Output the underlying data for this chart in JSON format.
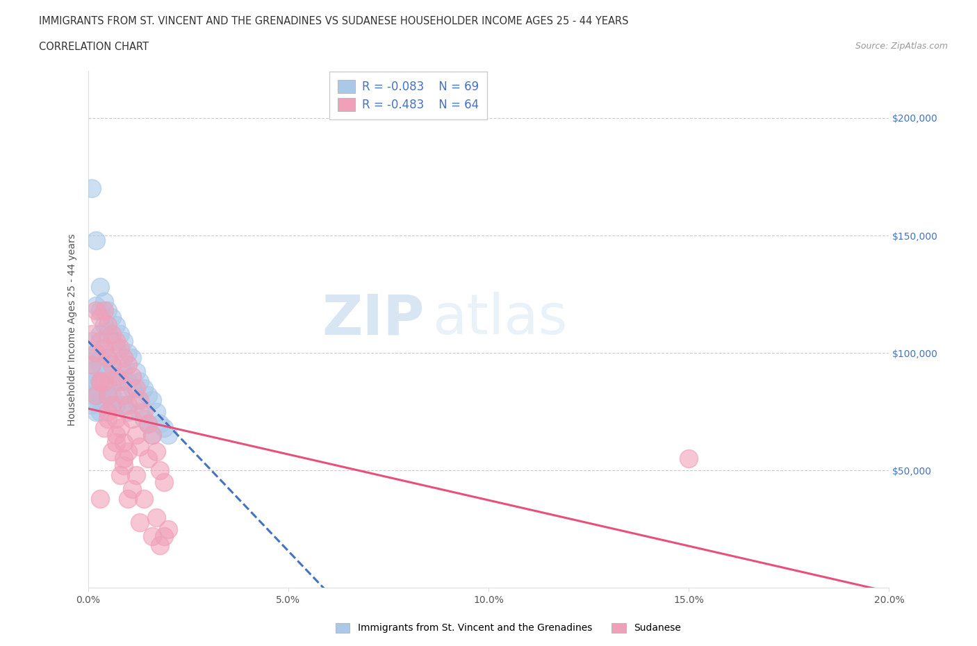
{
  "title_line1": "IMMIGRANTS FROM ST. VINCENT AND THE GRENADINES VS SUDANESE HOUSEHOLDER INCOME AGES 25 - 44 YEARS",
  "title_line2": "CORRELATION CHART",
  "source_text": "Source: ZipAtlas.com",
  "ylabel": "Householder Income Ages 25 - 44 years",
  "xlim": [
    0.0,
    0.2
  ],
  "ylim": [
    0,
    220000
  ],
  "xticks": [
    0.0,
    0.05,
    0.1,
    0.15,
    0.2
  ],
  "xtick_labels": [
    "0.0%",
    "5.0%",
    "10.0%",
    "15.0%",
    "20.0%"
  ],
  "ytick_values": [
    50000,
    100000,
    150000,
    200000
  ],
  "ytick_labels": [
    "$50,000",
    "$100,000",
    "$150,000",
    "$200,000"
  ],
  "legend_r1": "-0.083",
  "legend_n1": "69",
  "legend_r2": "-0.483",
  "legend_n2": "64",
  "color_blue": "#aac8e8",
  "color_pink": "#f0a0b8",
  "color_blue_line": "#4472c4",
  "color_pink_line": "#e8507a",
  "watermark_color": "#d0e4f4",
  "blue_scatter_x": [
    0.001,
    0.001,
    0.001,
    0.001,
    0.001,
    0.002,
    0.002,
    0.002,
    0.002,
    0.002,
    0.002,
    0.003,
    0.003,
    0.003,
    0.003,
    0.003,
    0.003,
    0.004,
    0.004,
    0.004,
    0.004,
    0.004,
    0.005,
    0.005,
    0.005,
    0.005,
    0.005,
    0.006,
    0.006,
    0.006,
    0.006,
    0.007,
    0.007,
    0.007,
    0.007,
    0.008,
    0.008,
    0.008,
    0.009,
    0.009,
    0.009,
    0.01,
    0.01,
    0.01,
    0.011,
    0.011,
    0.012,
    0.012,
    0.013,
    0.013,
    0.014,
    0.014,
    0.015,
    0.015,
    0.016,
    0.016,
    0.017,
    0.018,
    0.019,
    0.02,
    0.001,
    0.001,
    0.002,
    0.002,
    0.003,
    0.003,
    0.004,
    0.005,
    0.006
  ],
  "blue_scatter_y": [
    170000,
    95000,
    88000,
    82000,
    78000,
    148000,
    120000,
    100000,
    88000,
    82000,
    75000,
    128000,
    118000,
    108000,
    98000,
    88000,
    75000,
    122000,
    112000,
    102000,
    92000,
    82000,
    118000,
    108000,
    98000,
    88000,
    78000,
    115000,
    105000,
    95000,
    82000,
    112000,
    102000,
    88000,
    78000,
    108000,
    95000,
    82000,
    105000,
    92000,
    78000,
    100000,
    88000,
    75000,
    98000,
    85000,
    92000,
    80000,
    88000,
    75000,
    85000,
    72000,
    82000,
    70000,
    80000,
    65000,
    75000,
    70000,
    68000,
    65000,
    105000,
    92000,
    98000,
    85000,
    95000,
    80000,
    90000,
    85000,
    78000
  ],
  "pink_scatter_x": [
    0.001,
    0.001,
    0.002,
    0.002,
    0.003,
    0.003,
    0.003,
    0.004,
    0.004,
    0.004,
    0.005,
    0.005,
    0.005,
    0.006,
    0.006,
    0.006,
    0.007,
    0.007,
    0.007,
    0.008,
    0.008,
    0.008,
    0.009,
    0.009,
    0.009,
    0.01,
    0.01,
    0.01,
    0.011,
    0.011,
    0.012,
    0.012,
    0.013,
    0.013,
    0.014,
    0.015,
    0.015,
    0.016,
    0.017,
    0.018,
    0.019,
    0.02,
    0.003,
    0.005,
    0.007,
    0.009,
    0.012,
    0.014,
    0.017,
    0.019,
    0.002,
    0.004,
    0.006,
    0.008,
    0.01,
    0.013,
    0.016,
    0.018,
    0.003,
    0.005,
    0.007,
    0.009,
    0.011,
    0.15
  ],
  "pink_scatter_y": [
    108000,
    95000,
    118000,
    100000,
    115000,
    105000,
    88000,
    118000,
    102000,
    88000,
    112000,
    98000,
    82000,
    108000,
    95000,
    78000,
    105000,
    90000,
    72000,
    102000,
    88000,
    68000,
    98000,
    82000,
    62000,
    95000,
    78000,
    58000,
    90000,
    72000,
    85000,
    65000,
    80000,
    60000,
    75000,
    70000,
    55000,
    65000,
    58000,
    50000,
    45000,
    25000,
    38000,
    72000,
    65000,
    55000,
    48000,
    38000,
    30000,
    22000,
    82000,
    68000,
    58000,
    48000,
    38000,
    28000,
    22000,
    18000,
    88000,
    75000,
    62000,
    52000,
    42000,
    55000
  ]
}
